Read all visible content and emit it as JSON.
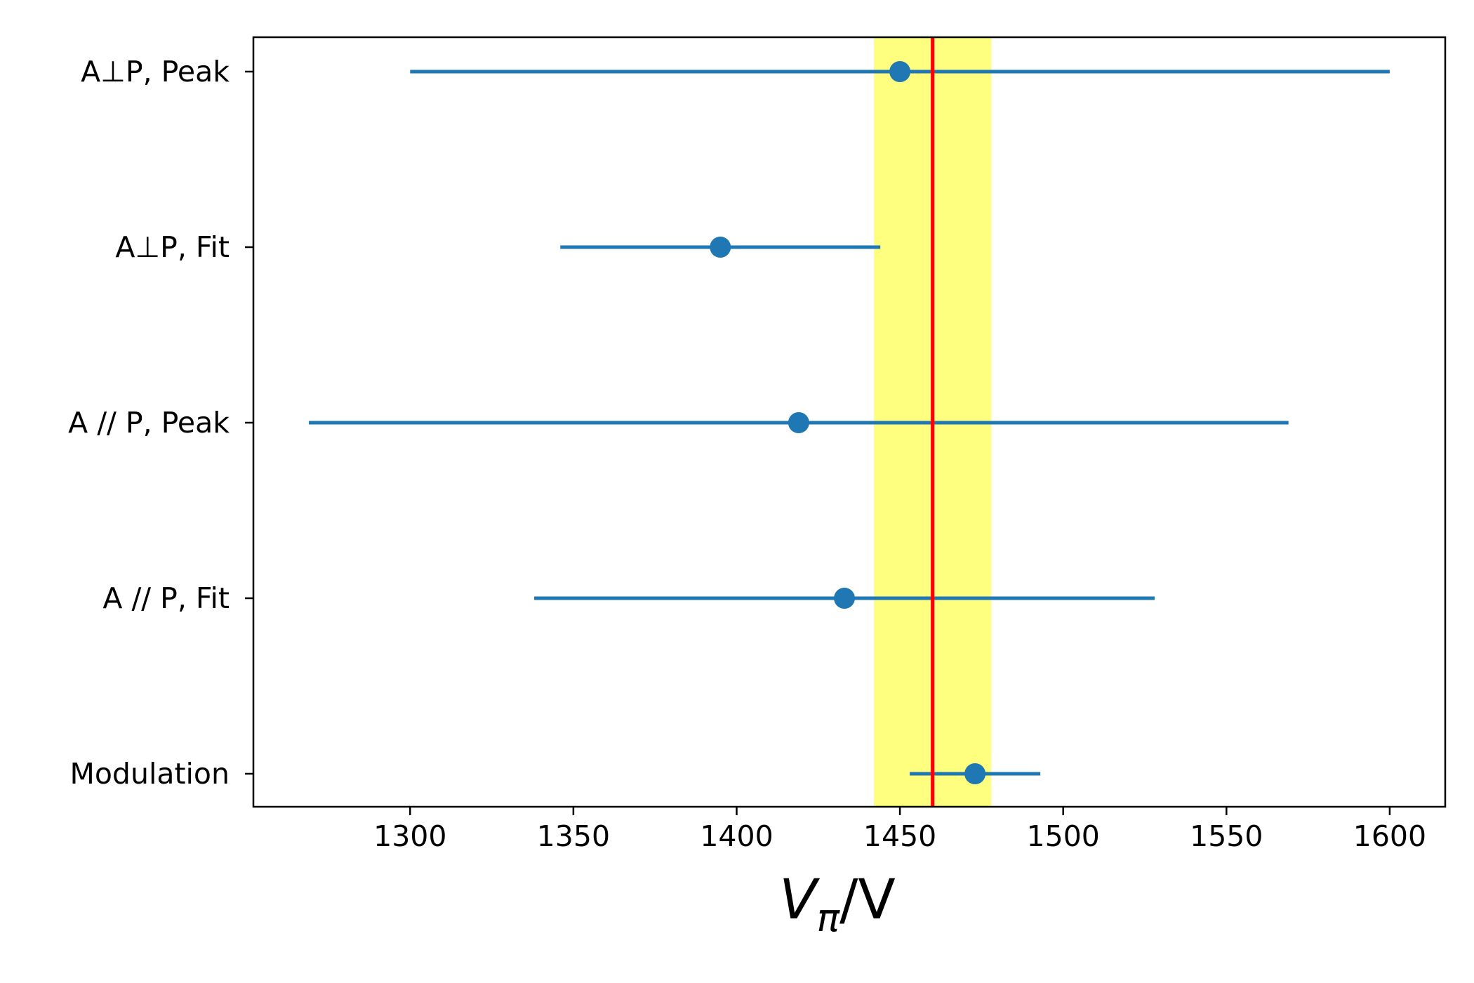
{
  "chart_data": {
    "type": "scatter",
    "subtype": "errorbar",
    "orientation": "horizontal",
    "categories": [
      "A⊥P, Peak",
      "A⊥P, Fit",
      "A // P, Peak",
      "A // P, Fit",
      "Modulation"
    ],
    "series": [
      {
        "values": [
          1450,
          1395,
          1419,
          1433,
          1473
        ],
        "err_low": [
          1300,
          1346,
          1269,
          1338,
          1453
        ],
        "err_high": [
          1600,
          1444,
          1569,
          1528,
          1493
        ],
        "color": "#1f77b4"
      }
    ],
    "reference_line": {
      "value": 1460,
      "color": "#ff0000"
    },
    "reference_band": {
      "low": 1442,
      "high": 1478,
      "color": "#ffff7f"
    },
    "xlim": [
      1252,
      1617
    ],
    "xticks": [
      1300,
      1350,
      1400,
      1450,
      1500,
      1550,
      1600
    ],
    "xlabel": {
      "main": "V",
      "sub": "π",
      "rest": "/V"
    },
    "ylabel": "",
    "title": "",
    "grid": false,
    "legend": "none"
  }
}
